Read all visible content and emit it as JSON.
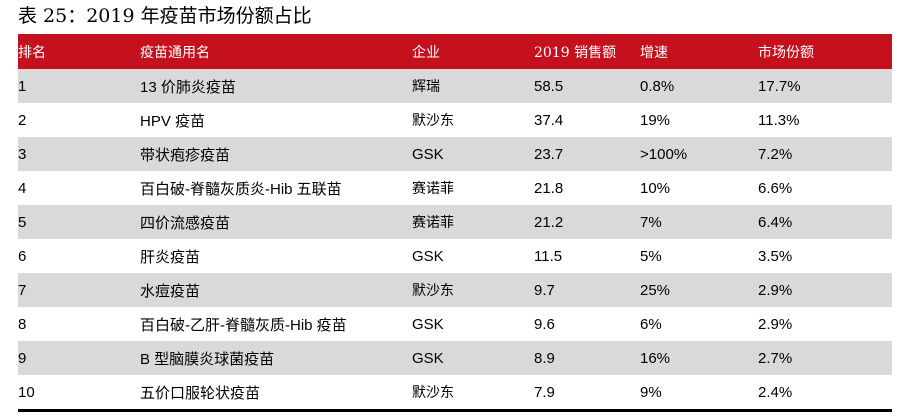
{
  "title": "表 25：2019 年疫苗市场份额占比",
  "table": {
    "columns": [
      "排名",
      "疫苗通用名",
      "企业",
      "2019 销售额",
      "增速",
      "市场份额"
    ],
    "rows": [
      [
        "1",
        "13 价肺炎疫苗",
        "辉瑞",
        "58.5",
        "0.8%",
        "17.7%"
      ],
      [
        "2",
        "HPV 疫苗",
        "默沙东",
        "37.4",
        "19%",
        "11.3%"
      ],
      [
        "3",
        "带状疱疹疫苗",
        "GSK",
        "23.7",
        ">100%",
        "7.2%"
      ],
      [
        "4",
        "百白破-脊髓灰质炎-Hib 五联苗",
        "赛诺菲",
        "21.8",
        "10%",
        "6.6%"
      ],
      [
        "5",
        "四价流感疫苗",
        "赛诺菲",
        "21.2",
        "7%",
        "6.4%"
      ],
      [
        "6",
        "肝炎疫苗",
        "GSK",
        "11.5",
        "5%",
        "3.5%"
      ],
      [
        "7",
        "水痘疫苗",
        "默沙东",
        "9.7",
        "25%",
        "2.9%"
      ],
      [
        "8",
        "百白破-乙肝-脊髓灰质-Hib 疫苗",
        "GSK",
        "9.6",
        "6%",
        "2.9%"
      ],
      [
        "9",
        "B 型脑膜炎球菌疫苗",
        "GSK",
        "8.9",
        "16%",
        "2.7%"
      ],
      [
        "10",
        "五价口服轮状疫苗",
        "默沙东",
        "7.9",
        "9%",
        "2.4%"
      ]
    ]
  },
  "colors": {
    "header_bg": "#c4111d",
    "row_alt": "#d9d9d9"
  }
}
